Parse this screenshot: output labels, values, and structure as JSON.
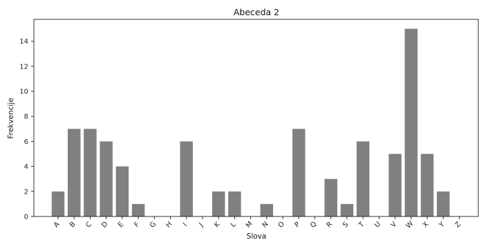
{
  "chart_data": {
    "type": "bar",
    "title": "Abeceda 2",
    "xlabel": "Slova",
    "ylabel": "Frekvencije",
    "categories": [
      "A",
      "B",
      "C",
      "D",
      "E",
      "F",
      "G",
      "H",
      "I",
      "J",
      "K",
      "L",
      "M",
      "N",
      "O",
      "P",
      "Q",
      "R",
      "S",
      "T",
      "U",
      "V",
      "W",
      "X",
      "Y",
      "Z"
    ],
    "values": [
      2,
      7,
      7,
      6,
      4,
      1,
      0,
      0,
      6,
      0,
      2,
      2,
      0,
      1,
      0,
      7,
      0,
      3,
      1,
      6,
      0,
      5,
      15,
      5,
      2,
      0
    ],
    "yticks": [
      0,
      2,
      4,
      6,
      8,
      10,
      12,
      14
    ],
    "ylim": [
      0,
      15.75
    ],
    "grid": false,
    "bar_color": "#808080"
  }
}
